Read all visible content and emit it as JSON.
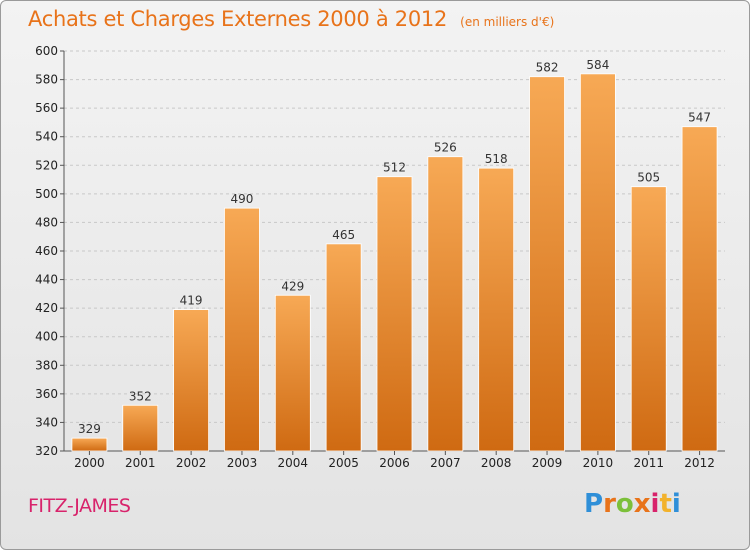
{
  "title": "Achats et Charges Externes 2000 à 2012",
  "subtitle": "(en milliers d'€)",
  "place": "FITZ-JAMES",
  "logo": {
    "letters": [
      "P",
      "r",
      "o",
      "x",
      "i",
      "t",
      "i"
    ],
    "colors": [
      "#2f8fd8",
      "#e8731a",
      "#7cc03a",
      "#e8731a",
      "#d8236b",
      "#f2b22c",
      "#2f8fd8"
    ]
  },
  "colors": {
    "bar_light": "#f7a955",
    "bar_dark": "#cf6a12",
    "title": "#e8731a",
    "place": "#d8236b"
  },
  "chart_data": {
    "type": "bar",
    "title": "Achats et Charges Externes 2000 à 2012",
    "subtitle": "(en milliers d'€)",
    "categories": [
      "2000",
      "2001",
      "2002",
      "2003",
      "2004",
      "2005",
      "2006",
      "2007",
      "2008",
      "2009",
      "2010",
      "2011",
      "2012"
    ],
    "values": [
      329,
      352,
      419,
      490,
      429,
      465,
      512,
      526,
      518,
      582,
      584,
      505,
      547
    ],
    "ylim": [
      320,
      600
    ],
    "yticks": [
      320,
      340,
      360,
      380,
      400,
      420,
      440,
      460,
      480,
      500,
      520,
      540,
      560,
      580,
      600
    ],
    "grid": true,
    "data_labels": true
  }
}
